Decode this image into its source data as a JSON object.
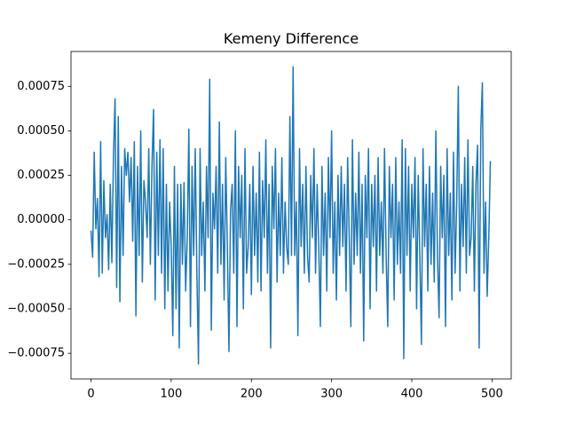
{
  "chart_data": {
    "type": "line",
    "title": "Kemeny Difference",
    "color": "#1f77b4",
    "x": [
      0,
      2,
      4,
      6,
      8,
      10,
      12,
      14,
      16,
      18,
      20,
      22,
      24,
      26,
      28,
      30,
      32,
      34,
      36,
      38,
      40,
      42,
      44,
      46,
      48,
      50,
      52,
      54,
      56,
      58,
      60,
      62,
      64,
      66,
      68,
      70,
      72,
      74,
      76,
      78,
      80,
      82,
      84,
      86,
      88,
      90,
      92,
      94,
      96,
      98,
      100,
      102,
      104,
      106,
      108,
      110,
      112,
      114,
      116,
      118,
      120,
      122,
      124,
      126,
      128,
      130,
      132,
      134,
      136,
      138,
      140,
      142,
      144,
      146,
      148,
      150,
      152,
      154,
      156,
      158,
      160,
      162,
      164,
      166,
      168,
      170,
      172,
      174,
      176,
      178,
      180,
      182,
      184,
      186,
      188,
      190,
      192,
      194,
      196,
      198,
      200,
      202,
      204,
      206,
      208,
      210,
      212,
      214,
      216,
      218,
      220,
      222,
      224,
      226,
      228,
      230,
      232,
      234,
      236,
      238,
      240,
      242,
      244,
      246,
      248,
      250,
      252,
      254,
      256,
      258,
      260,
      262,
      264,
      266,
      268,
      270,
      272,
      274,
      276,
      278,
      280,
      282,
      284,
      286,
      288,
      290,
      292,
      294,
      296,
      298,
      300,
      302,
      304,
      306,
      308,
      310,
      312,
      314,
      316,
      318,
      320,
      322,
      324,
      326,
      328,
      330,
      332,
      334,
      336,
      338,
      340,
      342,
      344,
      346,
      348,
      350,
      352,
      354,
      356,
      358,
      360,
      362,
      364,
      366,
      368,
      370,
      372,
      374,
      376,
      378,
      380,
      382,
      384,
      386,
      388,
      390,
      392,
      394,
      396,
      398,
      400,
      402,
      404,
      406,
      408,
      410,
      412,
      414,
      416,
      418,
      420,
      422,
      424,
      426,
      428,
      430,
      432,
      434,
      436,
      438,
      440,
      442,
      444,
      446,
      448,
      450,
      452,
      454,
      456,
      458,
      460,
      462,
      464,
      466,
      468,
      470,
      472,
      474,
      476,
      478,
      480,
      482,
      484,
      486,
      488,
      490,
      492,
      494,
      496,
      498
    ],
    "values": [
      -6e-05,
      -0.00021,
      0.00038,
      -5e-05,
      0.00012,
      -0.00032,
      0.00044,
      -0.0003,
      0.00022,
      -0.0001,
      3e-05,
      -0.00028,
      0.0002,
      -0.00024,
      0.00036,
      0.00068,
      -0.00038,
      0.00058,
      -0.00046,
      0.0003,
      -0.0002,
      0.0004,
      0.00025,
      0.00038,
      0.0001,
      0.00035,
      -0.00012,
      0.00044,
      -0.00054,
      0.0003,
      -0.0002,
      0.0005,
      -0.00035,
      0.00022,
      0.0001,
      -0.0001,
      0.0004,
      -0.00025,
      0.0003,
      0.00062,
      -0.00045,
      0.00038,
      -0.0002,
      0.00045,
      -0.0003,
      0.0004,
      -0.0005,
      0.0002,
      -0.0004,
      0.0001,
      -0.00015,
      -0.00065,
      0.0003,
      -0.0005,
      0.0002,
      -0.00072,
      0.0002,
      -0.00025,
      0.00021,
      -0.0004,
      -0.0001,
      0.00051,
      -0.0006,
      0.0003,
      -0.0002,
      0.0004,
      -0.0003,
      -0.00081,
      0.0004,
      -0.0002,
      0.0001,
      -0.0004,
      0.0003,
      -0.0001,
      0.00079,
      -0.00062,
      0.00015,
      -5e-05,
      0.0003,
      -0.0003,
      0.00055,
      -0.00025,
      0.0002,
      -0.00045,
      0.00035,
      -0.00015,
      -0.00074,
      5e-05,
      0.0002,
      -0.0003,
      0.0005,
      -0.0006,
      0.0003,
      -0.0001,
      0.00025,
      -0.0005,
      0.0004,
      -0.0003,
      -0.00015,
      0.0002,
      -0.00042,
      0.0003,
      -0.0002,
      0.00015,
      -0.00035,
      0.00038,
      -0.0004,
      0.00022,
      -0.0001,
      0.00045,
      -0.0003,
      0.0002,
      -0.00072,
      0.0003,
      -5e-05,
      0.0004,
      -0.00035,
      0.00015,
      -0.0002,
      0.00035,
      -0.0003,
      0.0001,
      -0.00015,
      -0.00025,
      0.00058,
      -0.0002,
      0.00086,
      -0.0002,
      0.0001,
      -0.00065,
      0.0004,
      -0.00015,
      0.0002,
      -0.0003,
      0.0003,
      -0.0002,
      -0.00035,
      0.00025,
      -0.0001,
      0.0004,
      -0.0003,
      0.0002,
      -0.00015,
      -0.0006,
      0.0003,
      -0.0002,
      0.00015,
      -0.0004,
      0.00035,
      -0.0001,
      0.0005,
      -0.0003,
      0.0001,
      -0.00045,
      0.00025,
      -0.0002,
      0.0003,
      -0.00015,
      0.0002,
      -0.0004,
      0.00035,
      -0.0001,
      -0.0006,
      0.00045,
      -0.00025,
      0.00015,
      -0.0002,
      0.00038,
      -0.0003,
      0.0002,
      -0.00068,
      0.00025,
      -0.0001,
      0.0004,
      -0.0005,
      0.0002,
      -0.00015,
      0.00025,
      -0.0004,
      0.00035,
      -0.0002,
      0.0001,
      -0.0003,
      0.0004,
      -0.0002,
      -0.0006,
      0.0003,
      -0.0001,
      0.0002,
      -0.00045,
      0.00035,
      -0.00025,
      0.0001,
      -0.0003,
      0.00045,
      -0.00078,
      0.0004,
      -0.0002,
      0.0003,
      -0.0004,
      0.0002,
      -0.0001,
      0.00035,
      -0.0005,
      0.00025,
      -0.0002,
      -0.0007,
      0.0004,
      -0.00015,
      0.0002,
      -0.0004,
      0.0003,
      -0.00025,
      0.00015,
      -0.00035,
      0.0005,
      -0.0002,
      -0.00055,
      0.0003,
      -0.0001,
      0.00025,
      -0.0006,
      0.0004,
      -0.0002,
      0.00015,
      -0.00045,
      0.00038,
      -0.0003,
      0.0001,
      0.00075,
      -0.0004,
      0.0002,
      -0.00015,
      0.00035,
      -0.0003,
      0.00045,
      -0.0002,
      -0.0001,
      0.0003,
      -0.0004,
      0.0002,
      0.00042,
      -0.00072,
      0.0005,
      0.00077,
      -0.0003,
      0.0001,
      -0.00043,
      -0.0001,
      0.00033
    ],
    "xlim": [
      -24.95,
      523.95
    ],
    "xticks": [
      0,
      100,
      200,
      300,
      400,
      500
    ],
    "ylim": [
      -0.000894,
      0.000946
    ],
    "yticks": [
      {
        "value": -0.00075,
        "label": "−0.00075"
      },
      {
        "value": -0.0005,
        "label": "−0.00050"
      },
      {
        "value": -0.00025,
        "label": "−0.00025"
      },
      {
        "value": 0,
        "label": "0.00000"
      },
      {
        "value": 0.00025,
        "label": "0.00025"
      },
      {
        "value": 0.0005,
        "label": "0.00050"
      },
      {
        "value": 0.00075,
        "label": "0.00075"
      }
    ]
  }
}
